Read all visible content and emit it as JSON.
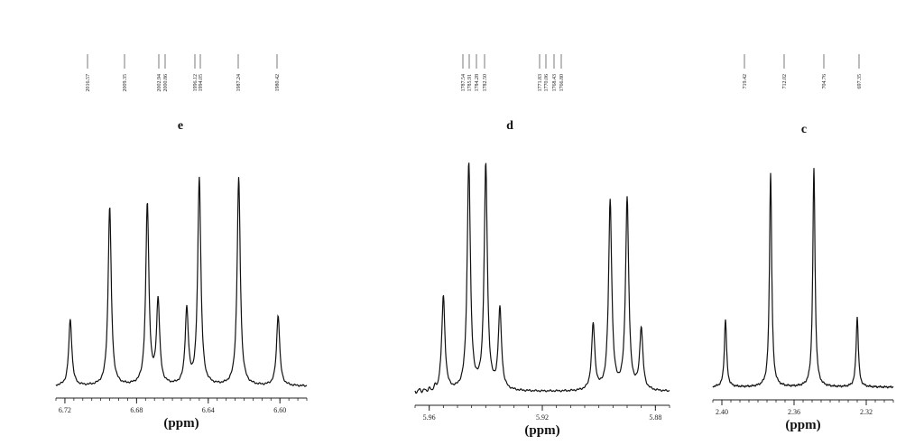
{
  "chart_data": [
    {
      "type": "line",
      "panel_label": "e",
      "xlabel": "(ppm)",
      "x_reversed": true,
      "xlim": [
        6.725,
        6.585
      ],
      "x_ticks": [
        6.72,
        6.68,
        6.64,
        6.6
      ],
      "x_tick_labels": [
        "6.72",
        "6.68",
        "6.64",
        "6.60"
      ],
      "peak_labels": [
        "2016.57",
        "2009.35",
        "2002.94",
        "2000.86",
        "1996.12",
        "1994.05",
        "1987.24",
        "1980.42"
      ],
      "peaks": [
        {
          "ppm": 6.717,
          "intensity": 0.3
        },
        {
          "ppm": 6.695,
          "intensity": 0.81
        },
        {
          "ppm": 6.674,
          "intensity": 0.82
        },
        {
          "ppm": 6.668,
          "intensity": 0.38
        },
        {
          "ppm": 6.652,
          "intensity": 0.34
        },
        {
          "ppm": 6.645,
          "intensity": 0.94
        },
        {
          "ppm": 6.623,
          "intensity": 0.94
        },
        {
          "ppm": 6.601,
          "intensity": 0.32
        }
      ]
    },
    {
      "type": "line",
      "panel_label": "d",
      "xlabel": "(ppm)",
      "x_reversed": true,
      "xlim": [
        5.965,
        5.875
      ],
      "x_ticks": [
        5.96,
        5.92,
        5.88
      ],
      "x_tick_labels": [
        "5.96",
        "5.92",
        "5.88"
      ],
      "peak_labels": [
        "1787.54",
        "1785.91",
        "1784.28",
        "1782.50",
        "1771.83",
        "1770.06",
        "1768.43",
        "1766.80"
      ],
      "peaks": [
        {
          "ppm": 5.955,
          "intensity": 0.4
        },
        {
          "ppm": 5.946,
          "intensity": 0.96
        },
        {
          "ppm": 5.94,
          "intensity": 0.95
        },
        {
          "ppm": 5.935,
          "intensity": 0.34
        },
        {
          "ppm": 5.902,
          "intensity": 0.28
        },
        {
          "ppm": 5.896,
          "intensity": 0.8
        },
        {
          "ppm": 5.89,
          "intensity": 0.81
        },
        {
          "ppm": 5.885,
          "intensity": 0.26
        }
      ]
    },
    {
      "type": "line",
      "panel_label": "c",
      "xlabel": "(ppm)",
      "x_reversed": true,
      "xlim": [
        2.405,
        2.305
      ],
      "x_ticks": [
        2.4,
        2.36,
        2.32
      ],
      "x_tick_labels": [
        "2.40",
        "2.36",
        "2.32"
      ],
      "peak_labels": [
        "719.42",
        "712.02",
        "704.76",
        "697.35"
      ],
      "peaks": [
        {
          "ppm": 2.398,
          "intensity": 0.3
        },
        {
          "ppm": 2.373,
          "intensity": 0.95
        },
        {
          "ppm": 2.349,
          "intensity": 0.97
        },
        {
          "ppm": 2.325,
          "intensity": 0.31
        }
      ]
    }
  ]
}
